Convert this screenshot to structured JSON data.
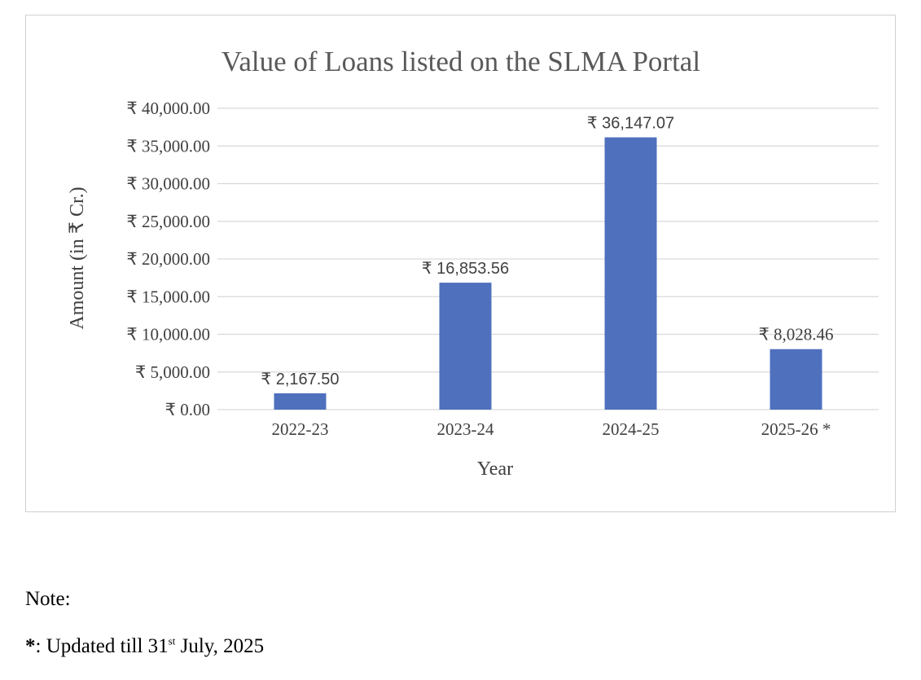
{
  "chart_data": {
    "type": "bar",
    "title": "Value of Loans listed on the SLMA Portal",
    "xlabel": "Year",
    "ylabel": "Amount (in ₹ Cr.)",
    "categories": [
      "2022-23",
      "2023-24",
      "2024-25",
      "2025-26 *"
    ],
    "values": [
      2167.5,
      16853.56,
      36147.07,
      8028.46
    ],
    "data_labels": [
      "₹ 2,167.50",
      "₹ 16,853.56",
      "₹ 36,147.07",
      "₹ 8,028.46"
    ],
    "ylim": [
      0,
      40000
    ],
    "yticks": [
      0,
      5000,
      10000,
      15000,
      20000,
      25000,
      30000,
      35000,
      40000
    ],
    "ytick_labels": [
      "₹ 0.00",
      "₹ 5,000.00",
      "₹ 10,000.00",
      "₹ 15,000.00",
      "₹ 20,000.00",
      "₹ 25,000.00",
      "₹ 30,000.00",
      "₹ 35,000.00",
      "₹ 40,000.00"
    ],
    "grid": true,
    "legend": "none",
    "bar_color": "#4f70bd"
  },
  "note": {
    "heading": "Note:",
    "marker": "*",
    "text_before": ": Updated till 31",
    "superscript": "st",
    "text_after": " July, 2025"
  }
}
